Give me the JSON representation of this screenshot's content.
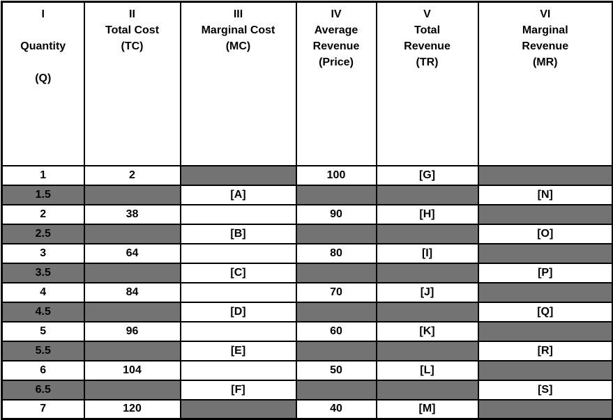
{
  "colors": {
    "na_cell_gray": "#737373",
    "placeholder_red": "#fe0000",
    "grid_border": "#000000",
    "text": "#000000",
    "background": "#ffffff"
  },
  "chart_data": {
    "type": "table",
    "columns": [
      {
        "id": "q",
        "numeral": "I",
        "label": "Quantity",
        "abbr": "(Q)",
        "lines": [
          "I",
          "",
          "Quantity",
          "",
          "(Q)"
        ]
      },
      {
        "id": "tc",
        "numeral": "II",
        "label": "Total Cost",
        "abbr": "(TC)",
        "lines": [
          "II",
          "Total Cost",
          "(TC)"
        ]
      },
      {
        "id": "mc",
        "numeral": "III",
        "label": "Marginal Cost",
        "abbr": "(MC)",
        "lines": [
          "III",
          "Marginal Cost",
          "(MC)"
        ]
      },
      {
        "id": "ar",
        "numeral": "IV",
        "label": "Average Revenue",
        "abbr": "(Price)",
        "lines": [
          "IV",
          "Average",
          "Revenue",
          "(Price)"
        ]
      },
      {
        "id": "tr",
        "numeral": "V",
        "label": "Total Revenue",
        "abbr": "(TR)",
        "lines": [
          "V",
          "Total",
          "Revenue",
          "(TR)"
        ]
      },
      {
        "id": "mr",
        "numeral": "VI",
        "label": "Marginal Revenue",
        "abbr": "(MR)",
        "lines": [
          "VI",
          "Marginal",
          "Revenue",
          "(MR)"
        ]
      }
    ],
    "rows": [
      {
        "q": "1",
        "cells": [
          {
            "text": "1",
            "style": "num"
          },
          {
            "text": "2",
            "style": "num"
          },
          {
            "text": "",
            "style": "gray"
          },
          {
            "text": "100",
            "style": "num"
          },
          {
            "text": "[G]",
            "style": "red"
          },
          {
            "text": "",
            "style": "gray"
          }
        ]
      },
      {
        "q": "1.5",
        "cells": [
          {
            "text": "1.5",
            "style": "num-gray"
          },
          {
            "text": "",
            "style": "gray"
          },
          {
            "text": "[A]",
            "style": "red"
          },
          {
            "text": "",
            "style": "gray"
          },
          {
            "text": "",
            "style": "gray"
          },
          {
            "text": "[N]",
            "style": "red"
          }
        ]
      },
      {
        "q": "2",
        "cells": [
          {
            "text": "2",
            "style": "num"
          },
          {
            "text": "38",
            "style": "num"
          },
          {
            "text": "",
            "style": "empty"
          },
          {
            "text": "90",
            "style": "num"
          },
          {
            "text": "[H]",
            "style": "red"
          },
          {
            "text": "",
            "style": "gray"
          }
        ]
      },
      {
        "q": "2.5",
        "cells": [
          {
            "text": "2.5",
            "style": "num-gray"
          },
          {
            "text": "",
            "style": "gray"
          },
          {
            "text": "[B]",
            "style": "red"
          },
          {
            "text": "",
            "style": "gray"
          },
          {
            "text": "",
            "style": "gray"
          },
          {
            "text": "[O]",
            "style": "red"
          }
        ]
      },
      {
        "q": "3",
        "cells": [
          {
            "text": "3",
            "style": "num"
          },
          {
            "text": "64",
            "style": "num"
          },
          {
            "text": "",
            "style": "empty"
          },
          {
            "text": "80",
            "style": "num"
          },
          {
            "text": "[I]",
            "style": "red"
          },
          {
            "text": "",
            "style": "gray"
          }
        ]
      },
      {
        "q": "3.5",
        "cells": [
          {
            "text": "3.5",
            "style": "num-gray"
          },
          {
            "text": "",
            "style": "gray"
          },
          {
            "text": "[C]",
            "style": "red"
          },
          {
            "text": "",
            "style": "gray"
          },
          {
            "text": "",
            "style": "gray"
          },
          {
            "text": "[P]",
            "style": "red"
          }
        ]
      },
      {
        "q": "4",
        "cells": [
          {
            "text": "4",
            "style": "num"
          },
          {
            "text": "84",
            "style": "num"
          },
          {
            "text": "",
            "style": "empty"
          },
          {
            "text": "70",
            "style": "num"
          },
          {
            "text": "[J]",
            "style": "red"
          },
          {
            "text": "",
            "style": "gray"
          }
        ]
      },
      {
        "q": "4.5",
        "cells": [
          {
            "text": "4.5",
            "style": "num-gray"
          },
          {
            "text": "",
            "style": "gray"
          },
          {
            "text": "[D]",
            "style": "red"
          },
          {
            "text": "",
            "style": "gray"
          },
          {
            "text": "",
            "style": "gray"
          },
          {
            "text": "[Q]",
            "style": "red"
          }
        ]
      },
      {
        "q": "5",
        "cells": [
          {
            "text": "5",
            "style": "num"
          },
          {
            "text": "96",
            "style": "num"
          },
          {
            "text": "",
            "style": "empty"
          },
          {
            "text": "60",
            "style": "num"
          },
          {
            "text": "[K]",
            "style": "red"
          },
          {
            "text": "",
            "style": "gray"
          }
        ]
      },
      {
        "q": "5.5",
        "cells": [
          {
            "text": "5.5",
            "style": "num-gray"
          },
          {
            "text": "",
            "style": "gray"
          },
          {
            "text": "[E]",
            "style": "red"
          },
          {
            "text": "",
            "style": "gray"
          },
          {
            "text": "",
            "style": "gray"
          },
          {
            "text": "[R]",
            "style": "red"
          }
        ]
      },
      {
        "q": "6",
        "cells": [
          {
            "text": "6",
            "style": "num"
          },
          {
            "text": "104",
            "style": "num"
          },
          {
            "text": "",
            "style": "empty"
          },
          {
            "text": "50",
            "style": "num"
          },
          {
            "text": "[L]",
            "style": "red"
          },
          {
            "text": "",
            "style": "gray"
          }
        ]
      },
      {
        "q": "6.5",
        "cells": [
          {
            "text": "6.5",
            "style": "num-gray"
          },
          {
            "text": "",
            "style": "gray"
          },
          {
            "text": "[F]",
            "style": "red"
          },
          {
            "text": "",
            "style": "gray"
          },
          {
            "text": "",
            "style": "gray"
          },
          {
            "text": "[S]",
            "style": "red"
          }
        ]
      },
      {
        "q": "7",
        "cells": [
          {
            "text": "7",
            "style": "num"
          },
          {
            "text": "120",
            "style": "num"
          },
          {
            "text": "",
            "style": "gray"
          },
          {
            "text": "40",
            "style": "num"
          },
          {
            "text": "[M]",
            "style": "red"
          },
          {
            "text": "",
            "style": "gray"
          }
        ]
      }
    ]
  }
}
